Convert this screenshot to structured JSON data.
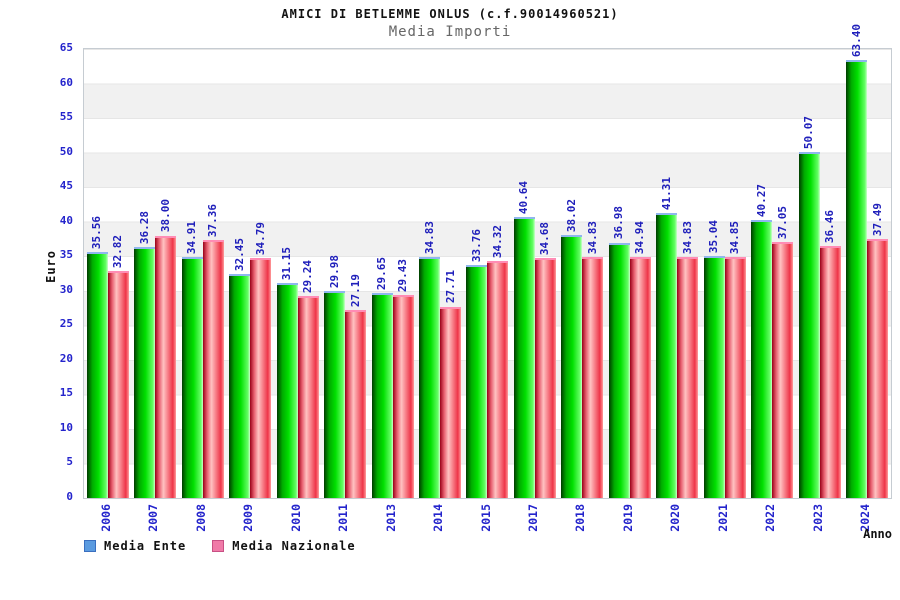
{
  "chart_data": {
    "type": "bar",
    "title": "AMICI DI BETLEMME ONLUS (c.f.90014960521)",
    "subtitle": "Media Importi",
    "xlabel": "Anno",
    "ylabel": "Euro",
    "ylim": [
      0,
      65
    ],
    "ytick_step": 5,
    "yticks": [
      0,
      5,
      10,
      15,
      20,
      25,
      30,
      35,
      40,
      45,
      50,
      55,
      60,
      65
    ],
    "grid": "alternating-horizontal-bands",
    "legend_position": "bottom-left",
    "categories": [
      "2006",
      "2007",
      "2008",
      "2009",
      "2010",
      "2011",
      "2013",
      "2014",
      "2015",
      "2017",
      "2018",
      "2019",
      "2020",
      "2021",
      "2022",
      "2023",
      "2024"
    ],
    "series": [
      {
        "name": "Media Ente",
        "values": [
          35.56,
          36.28,
          34.91,
          32.45,
          31.15,
          29.98,
          29.65,
          34.83,
          33.76,
          40.64,
          38.02,
          36.98,
          41.31,
          35.04,
          40.27,
          50.07,
          63.4
        ],
        "gradient": [
          "#003c00 0%",
          "#00aa00 25%",
          "#00e000 55%",
          "#66ff66 90%",
          "#ccffcc 100%"
        ],
        "cap_color": "#8fb6ee"
      },
      {
        "name": "Media Nazionale",
        "values": [
          32.82,
          38.0,
          37.36,
          34.79,
          29.24,
          27.19,
          29.43,
          27.71,
          34.32,
          34.68,
          34.83,
          34.94,
          34.83,
          34.85,
          37.05,
          36.46,
          37.49
        ],
        "gradient": [
          "#990018 0%",
          "#e86070 20%",
          "#ffc2c2 40%",
          "#ee3448 85%",
          "#ff9c9c 100%"
        ],
        "cap_color": "#ff8cb4"
      }
    ],
    "value_label_color": "#2020bb",
    "tick_label_color": "#2424cc",
    "band_color": "#f1f1f1"
  },
  "legend": {
    "items": [
      {
        "label": "Media Ente",
        "fill": "#5b9be0",
        "border": "#3a6fbf"
      },
      {
        "label": "Media Nazionale",
        "fill": "#f07aa8",
        "border": "#c85084"
      }
    ]
  }
}
